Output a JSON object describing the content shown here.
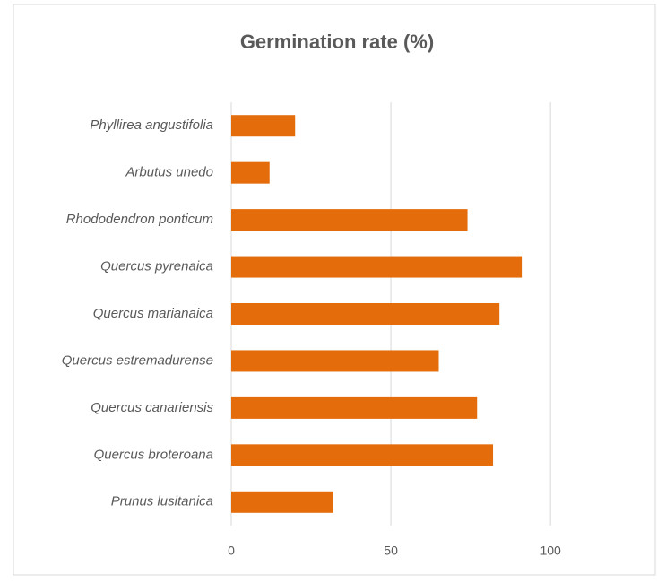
{
  "chart_data": {
    "type": "bar",
    "orientation": "horizontal",
    "title": "Germination rate (%)",
    "categories": [
      "Phyllirea angustifolia",
      "Arbutus unedo",
      "Rhododendron ponticum",
      "Quercus pyrenaica",
      "Quercus marianaica",
      "Quercus estremadurense",
      "Quercus canariensis",
      "Quercus broteroana",
      "Prunus lusitanica"
    ],
    "values": [
      20,
      12,
      74,
      91,
      84,
      65,
      77,
      82,
      32
    ],
    "color": "#e46c0a",
    "xlim": [
      0,
      130
    ],
    "xticks": [
      0,
      50,
      100
    ],
    "grid": true
  }
}
